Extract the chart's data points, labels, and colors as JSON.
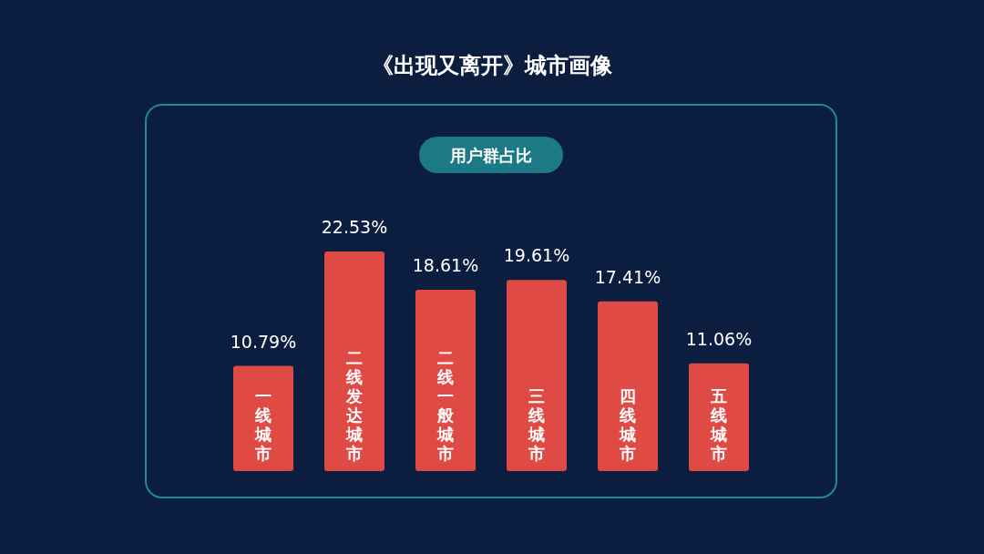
{
  "chart_data": {
    "type": "bar",
    "title": "《出现又离开》城市画像",
    "subtitle": "用户群占比",
    "categories": [
      "一线城市",
      "二线发达城市",
      "二线一般城市",
      "三线城市",
      "四线城市",
      "五线城市"
    ],
    "values": [
      10.79,
      22.53,
      18.61,
      19.61,
      17.41,
      11.06
    ],
    "value_labels": [
      "10.79%",
      "22.53%",
      "18.61%",
      "19.61%",
      "17.41%",
      "11.06%"
    ],
    "color": "#e04a45"
  }
}
